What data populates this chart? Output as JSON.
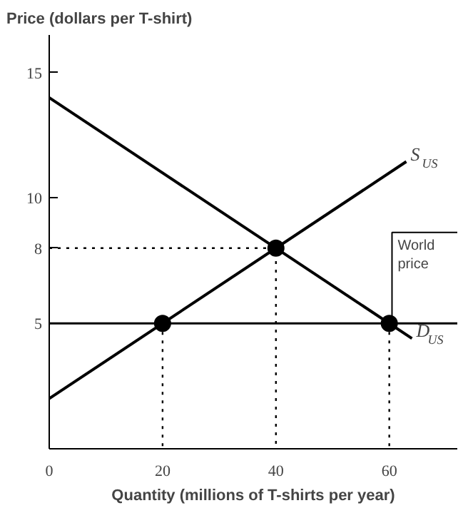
{
  "chart_data": {
    "type": "line",
    "ylabel": "Price (dollars per T-shirt)",
    "xlabel": "Quantity (millions of T-shirts per year)",
    "xlim": [
      0,
      72
    ],
    "ylim": [
      0,
      16.5
    ],
    "xticks": [
      0,
      20,
      40,
      60
    ],
    "yticks": [
      5,
      8,
      10,
      15
    ],
    "grid": false,
    "series": [
      {
        "name": "S$_{US}$",
        "color": "#000000",
        "x": [
          0,
          63
        ],
        "values": [
          2,
          11.45
        ],
        "line_style": "solid"
      },
      {
        "name": "D$_{US}$",
        "color": "#000000",
        "x": [
          0,
          64
        ],
        "values": [
          14,
          4.4
        ],
        "line_style": "solid"
      },
      {
        "type": "line",
        "color": "#000000",
        "x": [
          0,
          40,
          40
        ],
        "values": [
          8,
          8,
          0
        ],
        "line_style": "dotted"
      },
      {
        "type": "line",
        "color": "#000000",
        "x": [
          20,
          20
        ],
        "values": [
          5,
          0
        ],
        "line_style": "dotted"
      },
      {
        "type": "line",
        "color": "#000000",
        "x": [
          60,
          60
        ],
        "values": [
          5,
          0
        ],
        "line_style": "dotted"
      },
      {
        "type": "scatter",
        "color": "#000000",
        "x": [
          20,
          40,
          60
        ],
        "values": [
          5,
          8,
          5
        ],
        "marker": "circle"
      }
    ],
    "ref_lines": [
      {
        "axis": "y",
        "value": 5,
        "label": "World\nprice",
        "color": "#000000",
        "line_style": "solid"
      }
    ]
  }
}
